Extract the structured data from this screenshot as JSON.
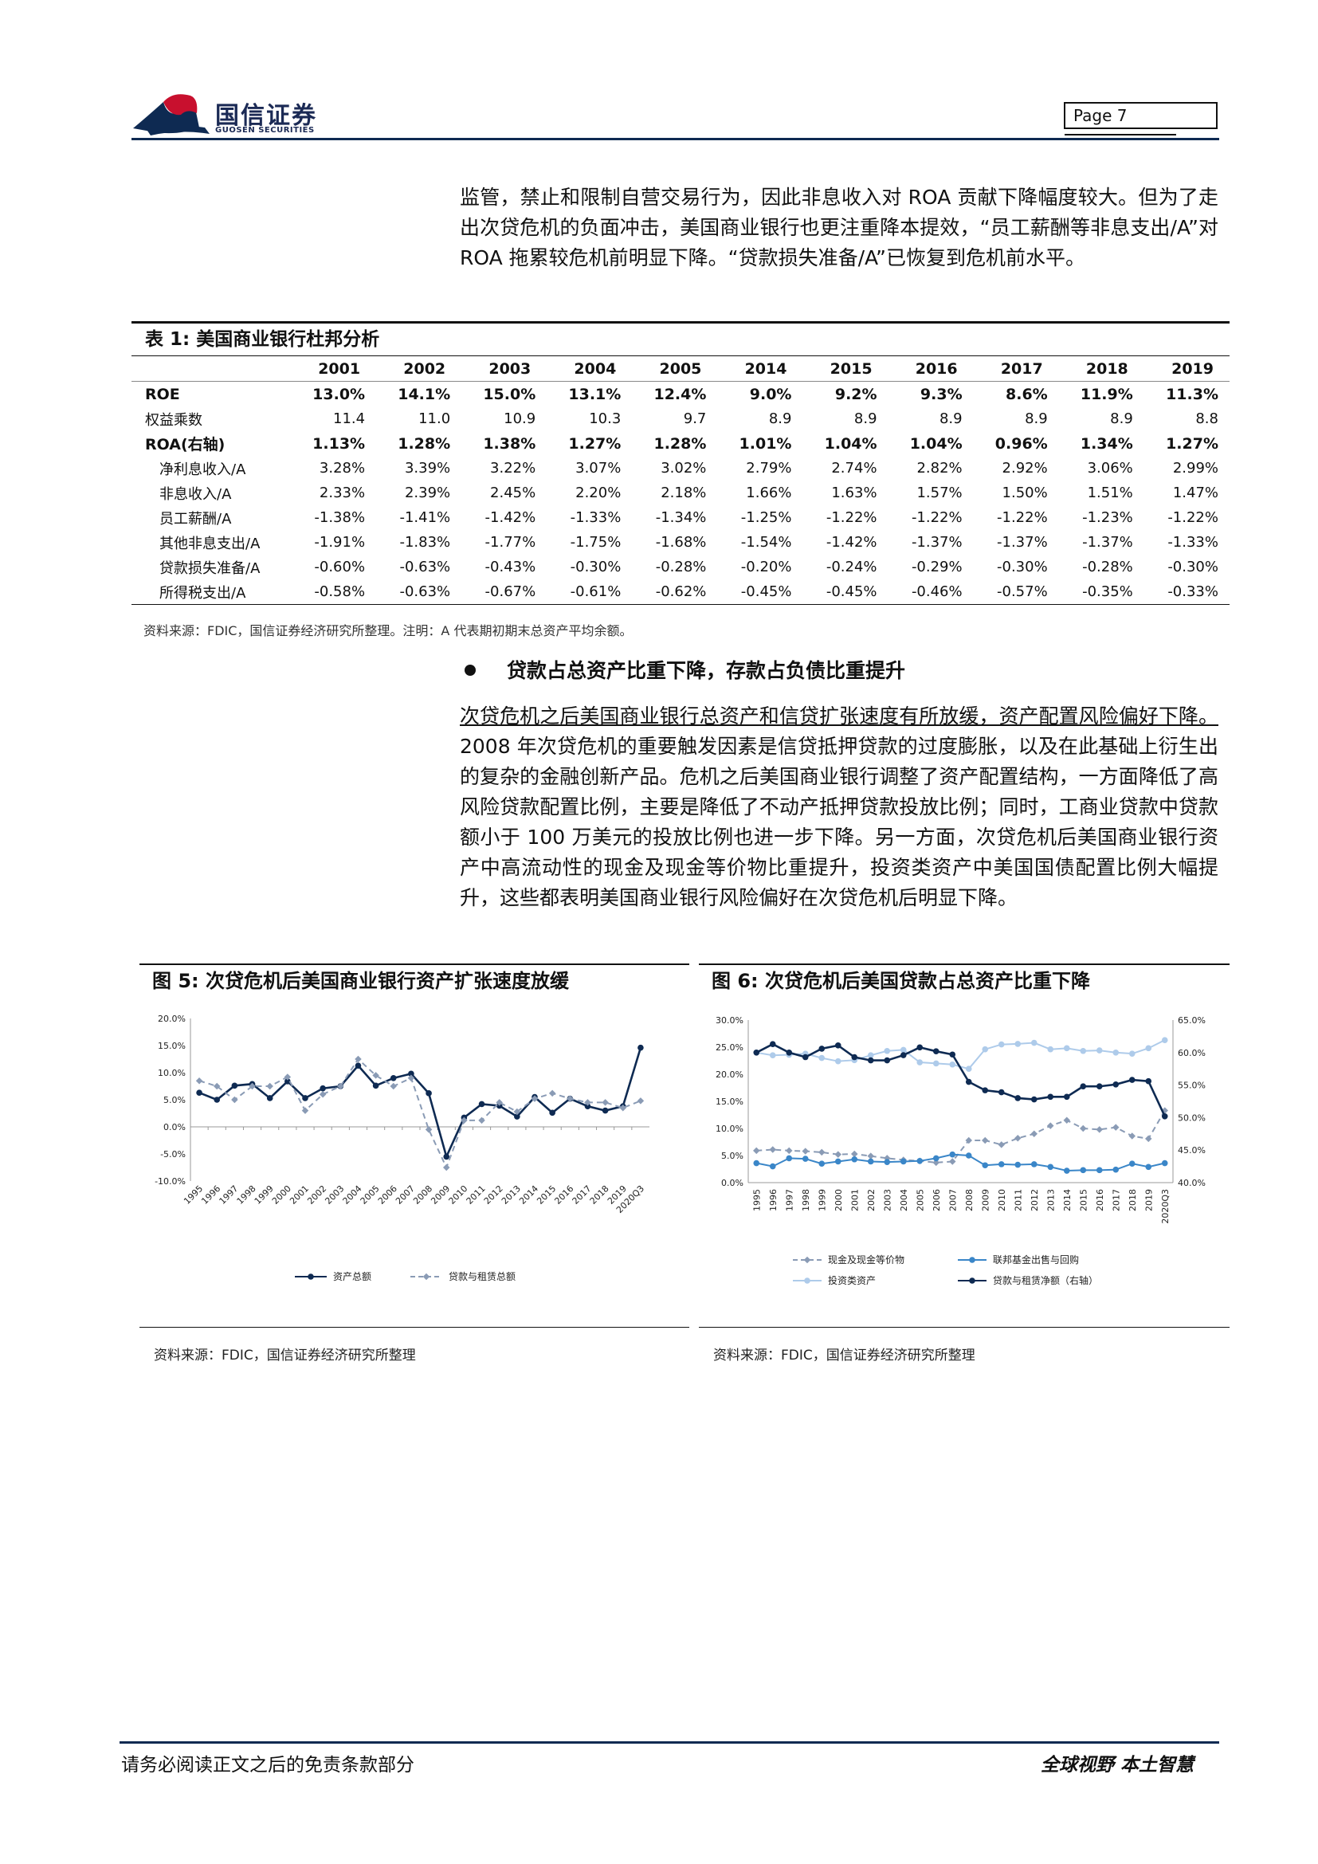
{
  "header": {
    "logo_cn": "国信证券",
    "logo_en": "GUOSEN SECURITIES",
    "page_label": "Page  7"
  },
  "para1": "监管，禁止和限制自营交易行为，因此非息收入对 ROA 贡献下降幅度较大。但为了走出次贷危机的负面冲击，美国商业银行也更注重降本提效，“员工薪酬等非息支出/A”对 ROA 拖累较危机前明显下降。“贷款损失准备/A”已恢复到危机前水平。",
  "table": {
    "title": "表 1: 美国商业银行杜邦分析",
    "years": [
      "2001",
      "2002",
      "2003",
      "2004",
      "2005",
      "2014",
      "2015",
      "2016",
      "2017",
      "2018",
      "2019"
    ],
    "rows": [
      {
        "label": "ROE",
        "values": [
          "13.0%",
          "14.1%",
          "15.0%",
          "13.1%",
          "12.4%",
          "9.0%",
          "9.2%",
          "9.3%",
          "8.6%",
          "11.9%",
          "11.3%"
        ]
      },
      {
        "label": "权益乘数",
        "values": [
          "11.4",
          "11.0",
          "10.9",
          "10.3",
          "9.7",
          "8.9",
          "8.9",
          "8.9",
          "8.9",
          "8.9",
          "8.8"
        ]
      },
      {
        "label": "ROA(右轴)",
        "values": [
          "1.13%",
          "1.28%",
          "1.38%",
          "1.27%",
          "1.28%",
          "1.01%",
          "1.04%",
          "1.04%",
          "0.96%",
          "1.34%",
          "1.27%"
        ]
      },
      {
        "label": "净利息收入/A",
        "values": [
          "3.28%",
          "3.39%",
          "3.22%",
          "3.07%",
          "3.02%",
          "2.79%",
          "2.74%",
          "2.82%",
          "2.92%",
          "3.06%",
          "2.99%"
        ]
      },
      {
        "label": "非息收入/A",
        "values": [
          "2.33%",
          "2.39%",
          "2.45%",
          "2.20%",
          "2.18%",
          "1.66%",
          "1.63%",
          "1.57%",
          "1.50%",
          "1.51%",
          "1.47%"
        ]
      },
      {
        "label": "员工薪酬/A",
        "values": [
          "-1.38%",
          "-1.41%",
          "-1.42%",
          "-1.33%",
          "-1.34%",
          "-1.25%",
          "-1.22%",
          "-1.22%",
          "-1.22%",
          "-1.23%",
          "-1.22%"
        ]
      },
      {
        "label": "其他非息支出/A",
        "values": [
          "-1.91%",
          "-1.83%",
          "-1.77%",
          "-1.75%",
          "-1.68%",
          "-1.54%",
          "-1.42%",
          "-1.37%",
          "-1.37%",
          "-1.37%",
          "-1.33%"
        ]
      },
      {
        "label": "贷款损失准备/A",
        "values": [
          "-0.60%",
          "-0.63%",
          "-0.43%",
          "-0.30%",
          "-0.28%",
          "-0.20%",
          "-0.24%",
          "-0.29%",
          "-0.30%",
          "-0.28%",
          "-0.30%"
        ]
      },
      {
        "label": "所得税支出/A",
        "values": [
          "-0.58%",
          "-0.63%",
          "-0.67%",
          "-0.61%",
          "-0.62%",
          "-0.45%",
          "-0.45%",
          "-0.46%",
          "-0.57%",
          "-0.35%",
          "-0.33%"
        ]
      }
    ],
    "note": "资料来源：FDIC，国信证券经济研究所整理。注明：A 代表期初期末总资产平均余额。"
  },
  "bullet_heading": "贷款占总资产比重下降，存款占负债比重提升",
  "para2_underlined": "次贷危机之后美国商业银行总资产和信贷扩张速度有所放缓，资产配置风险偏好下降。",
  "para2_rest": "2008 年次贷危机的重要触发因素是信贷抵押贷款的过度膨胀，以及在此基础上衍生出的复杂的金融创新产品。危机之后美国商业银行调整了资产配置结构，一方面降低了高风险贷款配置比例，主要是降低了不动产抵押贷款投放比例；同时，工商业贷款中贷款额小于 100 万美元的投放比例也进一步下降。另一方面，次贷危机后美国商业银行资产中高流动性的现金及现金等价物比重提升，投资类资产中美国国债配置比例大幅提升，这些都表明美国商业银行风险偏好在次贷危机后明显下降。",
  "fig5": {
    "title": "图 5: 次贷危机后美国商业银行资产扩张速度放缓",
    "source": "资料来源：FDIC，国信证券经济研究所整理"
  },
  "fig6": {
    "title": "图 6: 次贷危机后美国贷款占总资产比重下降",
    "source": "资料来源：FDIC，国信证券经济研究所整理"
  },
  "chart_data": [
    {
      "type": "line",
      "x": [
        "1995",
        "1996",
        "1997",
        "1998",
        "1999",
        "2000",
        "2001",
        "2002",
        "2003",
        "2004",
        "2005",
        "2006",
        "2007",
        "2008",
        "2009",
        "2010",
        "2011",
        "2012",
        "2013",
        "2014",
        "2015",
        "2016",
        "2017",
        "2018",
        "2019",
        "2020Q3"
      ],
      "ylim": [
        -10,
        20
      ],
      "yticks": [
        "20.0%",
        "15.0%",
        "10.0%",
        "5.0%",
        "0.0%",
        "-5.0%",
        "-10.0%"
      ],
      "series": [
        {
          "name": "资产总额",
          "color": "#0e2a52",
          "style": "solid",
          "values": [
            6.3,
            5.0,
            7.6,
            7.9,
            5.3,
            8.4,
            5.3,
            7.1,
            7.5,
            11.3,
            7.6,
            9.0,
            9.8,
            6.2,
            -5.5,
            1.7,
            4.2,
            3.9,
            1.9,
            5.5,
            2.6,
            5.2,
            3.8,
            3.0,
            3.8,
            14.6
          ]
        },
        {
          "name": "贷款与租赁总额",
          "color": "#8a9bb5",
          "style": "dashed",
          "values": [
            8.5,
            7.5,
            5.0,
            7.5,
            7.5,
            9.2,
            3.0,
            6.0,
            7.5,
            12.5,
            9.5,
            7.5,
            9.0,
            -0.5,
            -7.5,
            1.2,
            1.2,
            4.5,
            2.8,
            5.2,
            6.2,
            5.2,
            4.5,
            4.5,
            3.5,
            4.8
          ]
        }
      ]
    },
    {
      "type": "line",
      "x": [
        "1995",
        "1996",
        "1997",
        "1998",
        "1999",
        "2000",
        "2001",
        "2002",
        "2003",
        "2004",
        "2005",
        "2006",
        "2007",
        "2008",
        "2009",
        "2010",
        "2011",
        "2012",
        "2013",
        "2014",
        "2015",
        "2016",
        "2017",
        "2018",
        "2019",
        "2020Q3"
      ],
      "ylim": [
        0,
        30
      ],
      "y2lim": [
        40,
        65
      ],
      "yticks": [
        "30.0%",
        "25.0%",
        "20.0%",
        "15.0%",
        "10.0%",
        "5.0%",
        "0.0%"
      ],
      "y2ticks": [
        "65.0%",
        "60.0%",
        "55.0%",
        "50.0%",
        "45.0%",
        "40.0%"
      ],
      "series": [
        {
          "name": "现金及现金等价物",
          "axis": "left",
          "color": "#8a9bb5",
          "style": "dashed",
          "values": [
            5.9,
            6.1,
            5.9,
            5.8,
            5.6,
            5.2,
            5.3,
            4.9,
            4.5,
            4.2,
            4.0,
            3.7,
            3.9,
            7.8,
            7.8,
            7.0,
            8.2,
            9.0,
            10.5,
            11.5,
            10.0,
            9.8,
            10.2,
            8.6,
            8.1,
            13.3
          ]
        },
        {
          "name": "联邦基金出售与回购",
          "axis": "left",
          "color": "#3a86c8",
          "style": "solid",
          "values": [
            3.6,
            3.0,
            4.5,
            4.4,
            3.5,
            3.9,
            4.3,
            3.9,
            3.8,
            3.9,
            4.0,
            4.5,
            5.2,
            5.0,
            3.2,
            3.4,
            3.3,
            3.4,
            2.9,
            2.2,
            2.3,
            2.3,
            2.4,
            3.5,
            2.9,
            3.6
          ]
        },
        {
          "name": "投资类资产",
          "axis": "left",
          "color": "#aecbea",
          "style": "solid",
          "values": [
            24.0,
            23.5,
            23.6,
            23.8,
            23.0,
            22.4,
            22.6,
            23.5,
            24.3,
            24.5,
            22.2,
            22.0,
            21.8,
            21.0,
            24.6,
            25.5,
            25.6,
            25.8,
            24.6,
            24.8,
            24.3,
            24.4,
            24.0,
            23.8,
            24.8,
            26.3
          ]
        },
        {
          "name": "贷款与租赁净额（右轴）",
          "axis": "right",
          "color": "#0e2a52",
          "style": "solid",
          "values": [
            60.0,
            61.3,
            60.0,
            59.3,
            60.6,
            61.1,
            59.3,
            58.8,
            58.8,
            59.6,
            60.8,
            60.2,
            59.7,
            55.5,
            54.2,
            53.9,
            53.0,
            52.8,
            53.2,
            53.2,
            54.8,
            54.8,
            55.1,
            55.8,
            55.6,
            50.2
          ]
        }
      ]
    }
  ],
  "footer": {
    "left": "请务必阅读正文之后的免责条款部分",
    "right": "全球视野  本土智慧"
  },
  "colors": {
    "navy": "#0e2a52",
    "logo_red": "#c8102e"
  }
}
